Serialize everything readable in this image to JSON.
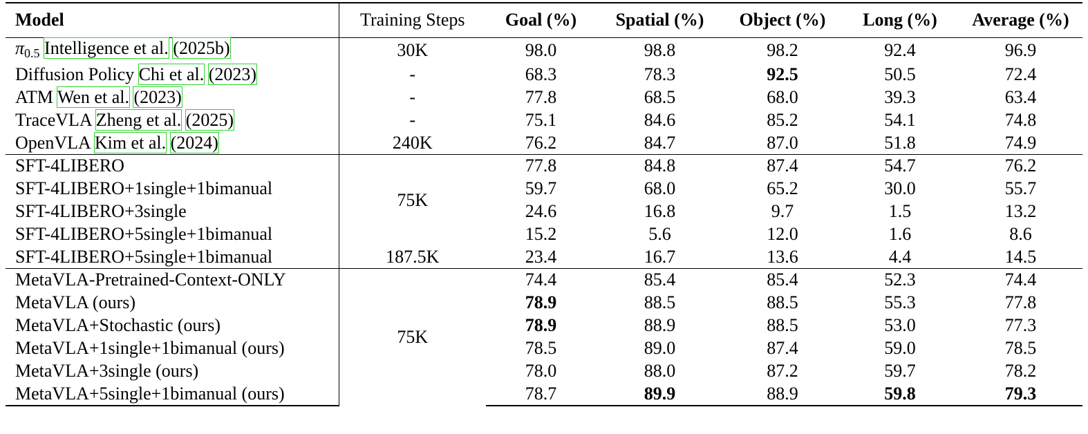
{
  "table": {
    "headers": {
      "model": "Model",
      "steps": "Training Steps",
      "goal": "Goal (%)",
      "spatial": "Spatial (%)",
      "object": "Object (%)",
      "long": "Long (%)",
      "average": "Average (%)"
    },
    "group_a": [
      {
        "name_symbol": "π",
        "name_subscript": "0.5",
        "cite_authors": "Intelligence et al.",
        "cite_year": "(2025b)",
        "steps": "30K",
        "goal": "98.0",
        "spatial": "98.8",
        "object": "98.2",
        "long": "92.4",
        "average": "96.9"
      },
      {
        "name": "Diffusion Policy",
        "cite_authors": "Chi et al.",
        "cite_year": "(2023)",
        "steps": "-",
        "goal": "68.3",
        "spatial": "78.3",
        "object": "92.5",
        "long": "50.5",
        "average": "72.4"
      },
      {
        "name": "ATM",
        "cite_authors": "Wen et al.",
        "cite_year": "(2023)",
        "steps": "-",
        "goal": "77.8",
        "spatial": "68.5",
        "object": "68.0",
        "long": "39.3",
        "average": "63.4"
      },
      {
        "name": "TraceVLA",
        "cite_authors": "Zheng et al.",
        "cite_year": "(2025)",
        "steps": "-",
        "goal": "75.1",
        "spatial": "84.6",
        "object": "85.2",
        "long": "54.1",
        "average": "74.8"
      },
      {
        "name": "OpenVLA",
        "cite_authors": "Kim et al.",
        "cite_year": "(2024)",
        "steps": "240K",
        "goal": "76.2",
        "spatial": "84.7",
        "object": "87.0",
        "long": "51.8",
        "average": "74.9"
      }
    ],
    "group_b": {
      "shared_steps": "75K",
      "rows": [
        {
          "name": "SFT-4LIBERO",
          "goal": "77.8",
          "spatial": "84.8",
          "object": "87.4",
          "long": "54.7",
          "average": "76.2"
        },
        {
          "name": "SFT-4LIBERO+1single+1bimanual",
          "goal": "59.7",
          "spatial": "68.0",
          "object": "65.2",
          "long": "30.0",
          "average": "55.7"
        },
        {
          "name": "SFT-4LIBERO+3single",
          "goal": "24.6",
          "spatial": "16.8",
          "object": "9.7",
          "long": "1.5",
          "average": "13.2"
        },
        {
          "name": "SFT-4LIBERO+5single+1bimanual",
          "goal": "15.2",
          "spatial": "5.6",
          "object": "12.0",
          "long": "1.6",
          "average": "8.6"
        }
      ],
      "last_row": {
        "name": "SFT-4LIBERO+5single+1bimanual",
        "steps": "187.5K",
        "goal": "23.4",
        "spatial": "16.7",
        "object": "13.6",
        "long": "4.4",
        "average": "14.5"
      }
    },
    "group_c": {
      "shared_steps": "75K",
      "rows": [
        {
          "name": "MetaVLA-Pretrained-Context-ONLY",
          "goal": "74.4",
          "spatial": "85.4",
          "object": "85.4",
          "long": "52.3",
          "average": "74.4"
        },
        {
          "name": "MetaVLA (ours)",
          "goal": "78.9",
          "spatial": "88.5",
          "object": "88.5",
          "long": "55.3",
          "average": "77.8"
        },
        {
          "name": "MetaVLA+Stochastic (ours)",
          "goal": "78.9",
          "spatial": "88.9",
          "object": "88.5",
          "long": "53.0",
          "average": "77.3"
        },
        {
          "name": "MetaVLA+1single+1bimanual (ours)",
          "goal": "78.5",
          "spatial": "89.0",
          "object": "87.4",
          "long": "59.0",
          "average": "78.5"
        },
        {
          "name": "MetaVLA+3single (ours)",
          "goal": "78.0",
          "spatial": "88.0",
          "object": "87.2",
          "long": "59.7",
          "average": "78.2"
        },
        {
          "name": "MetaVLA+5single+1bimanual (ours)",
          "goal": "78.7",
          "spatial": "89.9",
          "object": "88.9",
          "long": "59.8",
          "average": "79.3"
        }
      ]
    }
  }
}
